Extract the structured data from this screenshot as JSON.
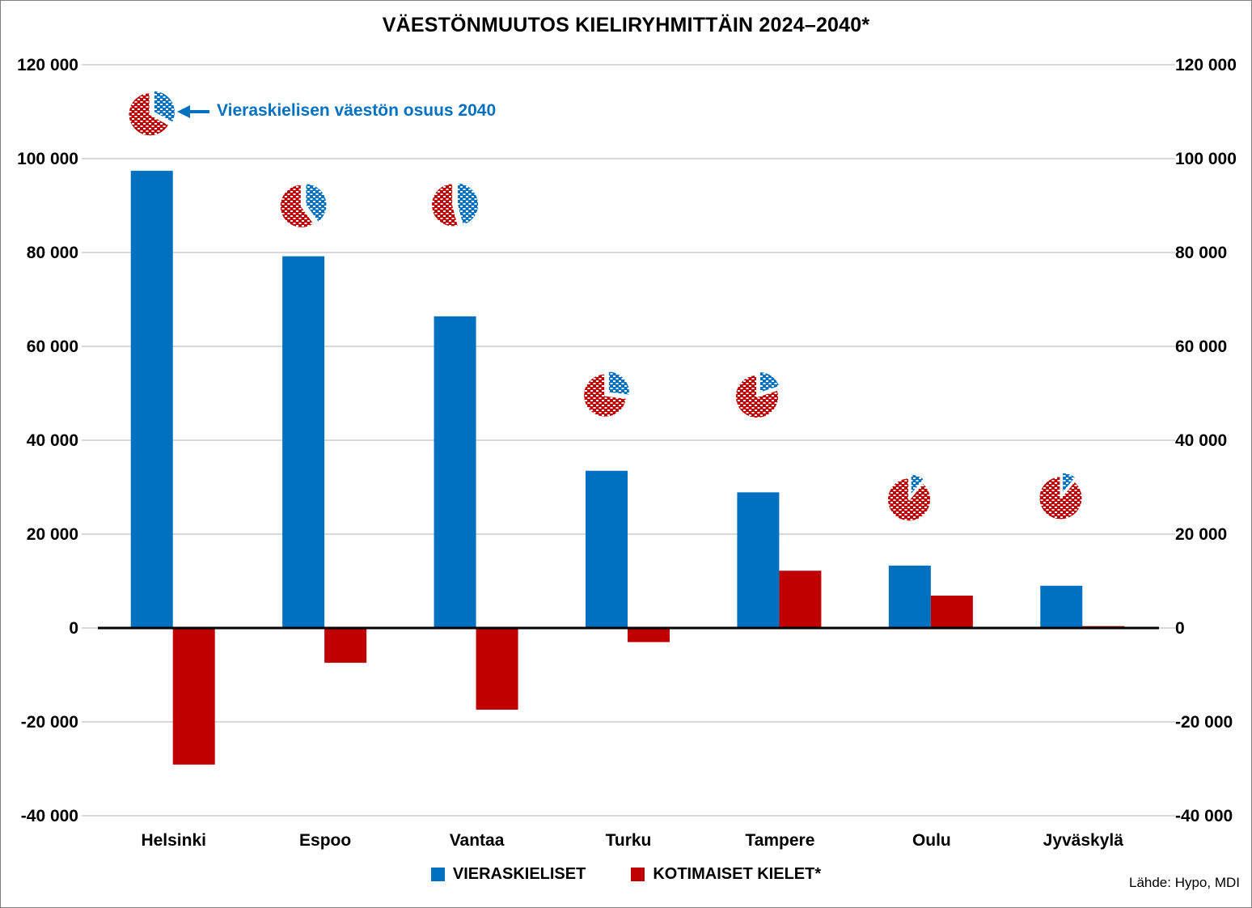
{
  "chart_data": {
    "type": "bar",
    "title": "VÄESTÖNMUUTOS KIELIRYHMITTÄIN 2024–2040*",
    "categories": [
      "Helsinki",
      "Espoo",
      "Vantaa",
      "Turku",
      "Tampere",
      "Oulu",
      "Jyväskylä"
    ],
    "series": [
      {
        "name": "VIERASKIELISET",
        "color": "#0070C0",
        "values": [
          97400,
          79200,
          66400,
          33500,
          28900,
          13300,
          9000
        ]
      },
      {
        "name": "KOTIMAISET KIELET*",
        "color": "#C00000",
        "values": [
          -29100,
          -7400,
          -17400,
          -3000,
          12200,
          6900,
          400
        ]
      }
    ],
    "pie_overlays": {
      "label": "Vieraskielisen väestön osuus 2040",
      "share_pct": [
        33,
        40,
        46,
        27,
        20,
        11,
        11
      ],
      "blue_color": "#0070C0",
      "red_color": "#C00000"
    },
    "y_axis": {
      "min": -40000,
      "max": 120000,
      "step": 20000,
      "tick_values": [
        120000,
        100000,
        80000,
        60000,
        40000,
        20000,
        0,
        -20000,
        -40000
      ],
      "tick_labels": [
        "120 000",
        "100 000",
        "80 000",
        "60 000",
        "40 000",
        "20 000",
        "0",
        "-20 000",
        "-40 000"
      ]
    },
    "grid": "horizontal",
    "legend_position": "bottom",
    "source": "Lähde: Hypo, MDI",
    "accent_blue": "#0070C0",
    "accent_red": "#C00000",
    "grid_color": "#d9d9d9",
    "axis_color": "#000000"
  }
}
